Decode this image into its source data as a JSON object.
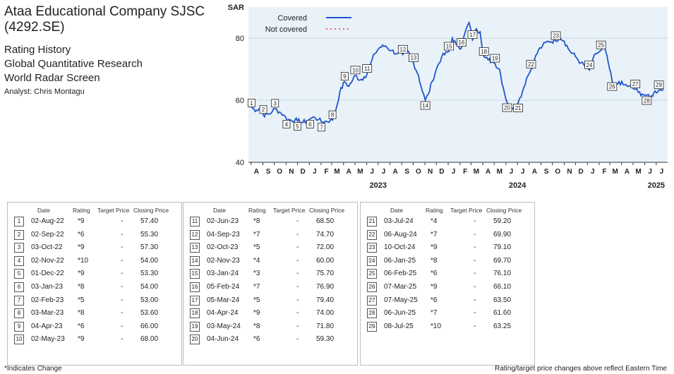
{
  "header": {
    "title": "Ataa Educational Company SJSC (4292.SE)",
    "subtitle_lines": [
      "Rating History",
      "Global Quantitative Research",
      "World Radar Screen"
    ],
    "analyst": "Analyst: Chris Montagu"
  },
  "chart_data": {
    "type": "line",
    "ylabel": "SAR",
    "ylim": [
      40,
      90
    ],
    "yticks": [
      40,
      60,
      80
    ],
    "grid": true,
    "legend_position": "top",
    "x_start": "2022-07-25",
    "x_end": "2025-07-31",
    "month_labels": [
      "A",
      "S",
      "O",
      "N",
      "D",
      "J",
      "F",
      "M",
      "A",
      "M",
      "J",
      "J",
      "A",
      "S",
      "O",
      "N",
      "D",
      "J",
      "F",
      "M",
      "A",
      "M",
      "J",
      "J",
      "A",
      "S",
      "O",
      "N",
      "D",
      "J",
      "F",
      "M",
      "A",
      "M",
      "J",
      "J"
    ],
    "year_labels": [
      {
        "label": "2023",
        "date": "2023-07-01"
      },
      {
        "label": "2024",
        "date": "2024-07-01"
      },
      {
        "label": "2025",
        "date": "2025-07-01"
      }
    ],
    "series": [
      {
        "name": "Covered",
        "color": "#2255cc",
        "style": "solid",
        "points": [
          [
            "2022-08-01",
            58.0
          ],
          [
            "2022-08-05",
            57.4
          ],
          [
            "2022-08-15",
            56.8
          ],
          [
            "2022-08-25",
            57.5
          ],
          [
            "2022-09-02",
            55.3
          ],
          [
            "2022-09-15",
            55.5
          ],
          [
            "2022-09-25",
            56.2
          ],
          [
            "2022-10-03",
            57.3
          ],
          [
            "2022-10-15",
            56.2
          ],
          [
            "2022-10-25",
            55.3
          ],
          [
            "2022-11-02",
            54.0
          ],
          [
            "2022-11-15",
            53.5
          ],
          [
            "2022-11-25",
            53.8
          ],
          [
            "2022-12-01",
            53.3
          ],
          [
            "2022-12-15",
            52.8
          ],
          [
            "2022-12-25",
            53.4
          ],
          [
            "2023-01-03",
            54.0
          ],
          [
            "2023-01-15",
            54.5
          ],
          [
            "2023-01-25",
            53.8
          ],
          [
            "2023-02-02",
            53.0
          ],
          [
            "2023-02-15",
            53.2
          ],
          [
            "2023-02-25",
            53.5
          ],
          [
            "2023-03-03",
            53.6
          ],
          [
            "2023-03-12",
            57.0
          ],
          [
            "2023-03-22",
            62.5
          ],
          [
            "2023-04-04",
            66.0
          ],
          [
            "2023-04-15",
            64.5
          ],
          [
            "2023-04-25",
            66.5
          ],
          [
            "2023-05-02",
            68.0
          ],
          [
            "2023-05-15",
            66.5
          ],
          [
            "2023-05-25",
            67.5
          ],
          [
            "2023-06-02",
            68.5
          ],
          [
            "2023-06-12",
            72.0
          ],
          [
            "2023-06-22",
            75.0
          ],
          [
            "2023-07-05",
            77.0
          ],
          [
            "2023-07-20",
            77.5
          ],
          [
            "2023-08-05",
            76.0
          ],
          [
            "2023-08-20",
            75.0
          ],
          [
            "2023-09-04",
            74.7
          ],
          [
            "2023-09-15",
            76.0
          ],
          [
            "2023-09-25",
            74.0
          ],
          [
            "2023-10-02",
            72.0
          ],
          [
            "2023-10-15",
            68.0
          ],
          [
            "2023-10-25",
            63.0
          ],
          [
            "2023-11-02",
            60.0
          ],
          [
            "2023-11-10",
            62.0
          ],
          [
            "2023-11-20",
            66.0
          ],
          [
            "2023-12-01",
            70.0
          ],
          [
            "2023-12-15",
            74.0
          ],
          [
            "2024-01-03",
            75.7
          ],
          [
            "2024-01-12",
            80.0
          ],
          [
            "2024-01-22",
            78.0
          ],
          [
            "2024-02-05",
            76.9
          ],
          [
            "2024-02-15",
            82.0
          ],
          [
            "2024-02-25",
            85.0
          ],
          [
            "2024-03-05",
            79.4
          ],
          [
            "2024-03-15",
            83.0
          ],
          [
            "2024-03-25",
            82.0
          ],
          [
            "2024-04-04",
            74.0
          ],
          [
            "2024-04-15",
            73.0
          ],
          [
            "2024-04-25",
            72.5
          ],
          [
            "2024-05-03",
            71.8
          ],
          [
            "2024-05-15",
            70.0
          ],
          [
            "2024-05-25",
            64.0
          ],
          [
            "2024-06-04",
            59.3
          ],
          [
            "2024-06-15",
            57.5
          ],
          [
            "2024-06-25",
            58.5
          ],
          [
            "2024-07-03",
            59.2
          ],
          [
            "2024-07-15",
            63.0
          ],
          [
            "2024-07-25",
            67.0
          ],
          [
            "2024-08-06",
            69.9
          ],
          [
            "2024-08-15",
            73.0
          ],
          [
            "2024-08-25",
            76.0
          ],
          [
            "2024-09-05",
            77.5
          ],
          [
            "2024-09-20",
            79.0
          ],
          [
            "2024-10-10",
            79.1
          ],
          [
            "2024-10-20",
            80.5
          ],
          [
            "2024-11-01",
            79.0
          ],
          [
            "2024-11-15",
            76.0
          ],
          [
            "2024-12-01",
            74.0
          ],
          [
            "2024-12-15",
            72.0
          ],
          [
            "2025-01-06",
            69.7
          ],
          [
            "2025-01-15",
            73.0
          ],
          [
            "2025-01-25",
            75.0
          ],
          [
            "2025-02-06",
            76.1
          ],
          [
            "2025-02-15",
            77.0
          ],
          [
            "2025-02-25",
            72.0
          ],
          [
            "2025-03-07",
            66.1
          ],
          [
            "2025-03-15",
            64.0
          ],
          [
            "2025-03-25",
            66.0
          ],
          [
            "2025-04-05",
            65.0
          ],
          [
            "2025-04-20",
            64.5
          ],
          [
            "2025-05-07",
            63.5
          ],
          [
            "2025-05-15",
            62.5
          ],
          [
            "2025-05-25",
            62.0
          ],
          [
            "2025-06-06",
            61.6
          ],
          [
            "2025-06-15",
            60.5
          ],
          [
            "2025-06-25",
            62.5
          ],
          [
            "2025-07-08",
            63.25
          ],
          [
            "2025-07-20",
            63.5
          ]
        ]
      },
      {
        "name": "Not covered",
        "color": "#e53935",
        "style": "dotted",
        "points": []
      }
    ],
    "markers": [
      {
        "n": "1",
        "date": "2022-08-02",
        "y": 57.4
      },
      {
        "n": "2",
        "date": "2022-09-02",
        "y": 55.3
      },
      {
        "n": "3",
        "date": "2022-10-03",
        "y": 57.3
      },
      {
        "n": "4",
        "date": "2022-11-02",
        "y": 54.0
      },
      {
        "n": "5",
        "date": "2022-12-01",
        "y": 53.3
      },
      {
        "n": "6",
        "date": "2023-01-03",
        "y": 54.0
      },
      {
        "n": "7",
        "date": "2023-02-02",
        "y": 53.0
      },
      {
        "n": "8",
        "date": "2023-03-03",
        "y": 53.6
      },
      {
        "n": "9",
        "date": "2023-04-04",
        "y": 66.0
      },
      {
        "n": "10",
        "date": "2023-05-02",
        "y": 68.0
      },
      {
        "n": "11",
        "date": "2023-06-02",
        "y": 68.5
      },
      {
        "n": "12",
        "date": "2023-09-04",
        "y": 74.7
      },
      {
        "n": "13",
        "date": "2023-10-02",
        "y": 72.0
      },
      {
        "n": "14",
        "date": "2023-11-02",
        "y": 60.0
      },
      {
        "n": "15",
        "date": "2024-01-03",
        "y": 75.7
      },
      {
        "n": "16",
        "date": "2024-02-05",
        "y": 76.9
      },
      {
        "n": "17",
        "date": "2024-03-05",
        "y": 79.4
      },
      {
        "n": "18",
        "date": "2024-04-04",
        "y": 74.0
      },
      {
        "n": "19",
        "date": "2024-05-03",
        "y": 71.8
      },
      {
        "n": "20",
        "date": "2024-06-04",
        "y": 59.3
      },
      {
        "n": "21",
        "date": "2024-07-03",
        "y": 59.2
      },
      {
        "n": "22",
        "date": "2024-08-06",
        "y": 69.9
      },
      {
        "n": "23",
        "date": "2024-10-10",
        "y": 79.1
      },
      {
        "n": "24",
        "date": "2025-01-06",
        "y": 69.7
      },
      {
        "n": "25",
        "date": "2025-02-06",
        "y": 76.1
      },
      {
        "n": "26",
        "date": "2025-03-07",
        "y": 66.1
      },
      {
        "n": "27",
        "date": "2025-05-07",
        "y": 63.5
      },
      {
        "n": "28",
        "date": "2025-06-06",
        "y": 61.6
      },
      {
        "n": "29",
        "date": "2025-07-08",
        "y": 63.25
      }
    ]
  },
  "table": {
    "headers": {
      "date": "Date",
      "rating": "Rating",
      "target": "Target Price",
      "close": "Closing Price"
    },
    "panels": [
      [
        {
          "n": "1",
          "date": "02-Aug-22",
          "rating": "*9",
          "target": "-",
          "close": "57.40"
        },
        {
          "n": "2",
          "date": "02-Sep-22",
          "rating": "*6",
          "target": "-",
          "close": "55.30"
        },
        {
          "n": "3",
          "date": "03-Oct-22",
          "rating": "*9",
          "target": "-",
          "close": "57.30"
        },
        {
          "n": "4",
          "date": "02-Nov-22",
          "rating": "*10",
          "target": "-",
          "close": "54.00"
        },
        {
          "n": "5",
          "date": "01-Dec-22",
          "rating": "*9",
          "target": "-",
          "close": "53.30"
        },
        {
          "n": "6",
          "date": "03-Jan-23",
          "rating": "*8",
          "target": "-",
          "close": "54.00"
        },
        {
          "n": "7",
          "date": "02-Feb-23",
          "rating": "*5",
          "target": "-",
          "close": "53.00"
        },
        {
          "n": "8",
          "date": "03-Mar-23",
          "rating": "*8",
          "target": "-",
          "close": "53.60"
        },
        {
          "n": "9",
          "date": "04-Apr-23",
          "rating": "*6",
          "target": "-",
          "close": "66.00"
        },
        {
          "n": "10",
          "date": "02-May-23",
          "rating": "*9",
          "target": "-",
          "close": "68.00"
        }
      ],
      [
        {
          "n": "11",
          "date": "02-Jun-23",
          "rating": "*8",
          "target": "-",
          "close": "68.50"
        },
        {
          "n": "12",
          "date": "04-Sep-23",
          "rating": "*7",
          "target": "-",
          "close": "74.70"
        },
        {
          "n": "13",
          "date": "02-Oct-23",
          "rating": "*5",
          "target": "-",
          "close": "72.00"
        },
        {
          "n": "14",
          "date": "02-Nov-23",
          "rating": "*4",
          "target": "-",
          "close": "60.00"
        },
        {
          "n": "15",
          "date": "03-Jan-24",
          "rating": "*3",
          "target": "-",
          "close": "75.70"
        },
        {
          "n": "16",
          "date": "05-Feb-24",
          "rating": "*7",
          "target": "-",
          "close": "76.90"
        },
        {
          "n": "17",
          "date": "05-Mar-24",
          "rating": "*5",
          "target": "-",
          "close": "79.40"
        },
        {
          "n": "18",
          "date": "04-Apr-24",
          "rating": "*9",
          "target": "-",
          "close": "74.00"
        },
        {
          "n": "19",
          "date": "03-May-24",
          "rating": "*8",
          "target": "-",
          "close": "71.80"
        },
        {
          "n": "20",
          "date": "04-Jun-24",
          "rating": "*6",
          "target": "-",
          "close": "59.30"
        }
      ],
      [
        {
          "n": "21",
          "date": "03-Jul-24",
          "rating": "*4",
          "target": "-",
          "close": "59.20"
        },
        {
          "n": "22",
          "date": "06-Aug-24",
          "rating": "*7",
          "target": "-",
          "close": "69.90"
        },
        {
          "n": "23",
          "date": "10-Oct-24",
          "rating": "*9",
          "target": "-",
          "close": "79.10"
        },
        {
          "n": "24",
          "date": "06-Jan-25",
          "rating": "*8",
          "target": "-",
          "close": "69.70"
        },
        {
          "n": "25",
          "date": "06-Feb-25",
          "rating": "*6",
          "target": "-",
          "close": "76.10"
        },
        {
          "n": "26",
          "date": "07-Mar-25",
          "rating": "*9",
          "target": "-",
          "close": "66.10"
        },
        {
          "n": "27",
          "date": "07-May-25",
          "rating": "*6",
          "target": "-",
          "close": "63.50"
        },
        {
          "n": "28",
          "date": "06-Jun-25",
          "rating": "*7",
          "target": "-",
          "close": "61.60"
        },
        {
          "n": "29",
          "date": "08-Jul-25",
          "rating": "*10",
          "target": "-",
          "close": "63.25"
        }
      ]
    ]
  },
  "footer": {
    "left": "*Indicates Change",
    "right": "Rating/target price changes above reflect Eastern Time"
  }
}
